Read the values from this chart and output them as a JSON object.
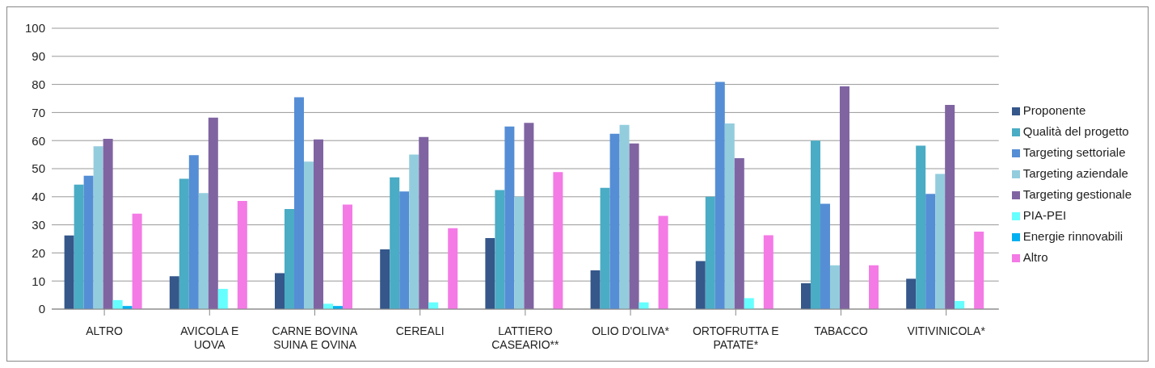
{
  "chart_data": {
    "type": "bar",
    "categories": [
      "ALTRO",
      "AVICOLA E UOVA",
      "CARNE BOVINA SUINA E OVINA",
      "CEREALI",
      "LATTIERO CASEARIO**",
      "OLIO D'OLIVA*",
      "ORTOFRUTTA E PATATE*",
      "TABACCO",
      "VITIVINICOLA*"
    ],
    "series": [
      {
        "name": "Proponente",
        "color": "#35578a",
        "values": [
          26.2,
          11.7,
          12.8,
          21.3,
          25.3,
          13.8,
          17.1,
          9.2,
          10.8
        ]
      },
      {
        "name": "Qualità del progetto",
        "color": "#4aacc5",
        "values": [
          44.3,
          46.4,
          35.6,
          46.9,
          42.4,
          43.2,
          40.0,
          60.0,
          58.2
        ]
      },
      {
        "name": "Targeting settoriale",
        "color": "#558ed5",
        "values": [
          47.5,
          54.8,
          75.4,
          41.9,
          65.0,
          62.4,
          80.9,
          37.5,
          41.0
        ]
      },
      {
        "name": "Targeting aziendale",
        "color": "#93cddd",
        "values": [
          58.0,
          41.3,
          52.5,
          55.0,
          40.0,
          65.6,
          66.1,
          15.6,
          48.1
        ]
      },
      {
        "name": "Targeting gestionale",
        "color": "#8064a2",
        "values": [
          60.6,
          68.2,
          60.4,
          61.3,
          66.3,
          59.0,
          53.7,
          79.3,
          72.7
        ]
      },
      {
        "name": "PIA-PEI",
        "color": "#66ffff",
        "values": [
          3.2,
          7.2,
          1.9,
          2.4,
          null,
          2.4,
          3.9,
          null,
          2.9
        ]
      },
      {
        "name": "Energie rinnovabili",
        "color": "#00b0f0",
        "values": [
          1.1,
          null,
          1.1,
          null,
          null,
          null,
          null,
          null,
          null
        ]
      },
      {
        "name": "Altro",
        "color": "#f47ae6",
        "values": [
          34.0,
          38.5,
          37.2,
          28.8,
          48.8,
          33.2,
          26.3,
          15.6,
          27.6
        ]
      }
    ],
    "ylim": [
      0,
      100
    ],
    "yticks": [
      0,
      10,
      20,
      30,
      40,
      50,
      60,
      70,
      80,
      90,
      100
    ],
    "grid": "y",
    "legend": "right"
  }
}
